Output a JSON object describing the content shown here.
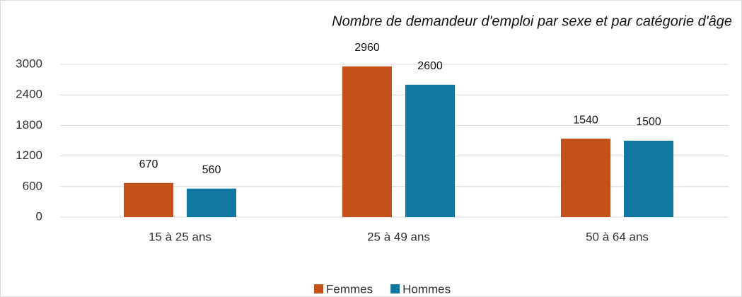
{
  "chart_data": {
    "type": "bar",
    "title": "Nombre de demandeur d'emploi par sexe et par catégorie d'âge",
    "categories": [
      "15 à 25 ans",
      "25 à 49 ans",
      "50 à 64 ans"
    ],
    "series": [
      {
        "name": "Femmes",
        "color": "#c4501a",
        "values": [
          670,
          2960,
          1540
        ]
      },
      {
        "name": "Hommes",
        "color": "#0f77a0",
        "values": [
          560,
          2600,
          1500
        ]
      }
    ],
    "ylim": [
      0,
      3000
    ],
    "yticks": [
      0,
      600,
      1200,
      1800,
      2400,
      3000
    ],
    "grid": true,
    "legend": "bottom"
  }
}
